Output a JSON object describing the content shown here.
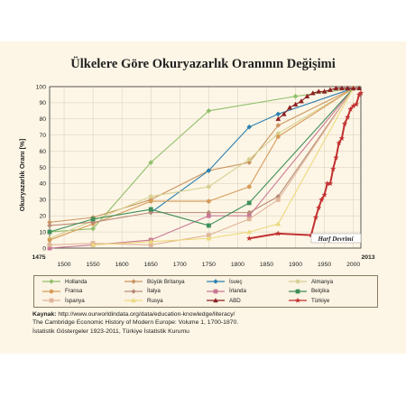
{
  "title": "Ülkelere Göre Okuryazarlık Oranının Değişimi",
  "source": {
    "label": "Kaynak:",
    "lines": [
      "http://www.ourworldindata.org/data/education-knowledge/literacy/",
      "The Cambridge Economic History of Modern Europe: Volume 1, 1700-1870.",
      "İstatistik Göstergeler 1923-2011, Türkiye İstatistik Kurumu"
    ]
  },
  "chart_data": {
    "type": "line",
    "title": "Ülkelere Göre Okuryazarlık Oranının Değişimi",
    "ylabel": "Okuryazarlık Oranı [%]",
    "xlabel": "",
    "xlim": [
      1475,
      2013
    ],
    "ylim": [
      0,
      100
    ],
    "x_ticks": [
      1500,
      1550,
      1600,
      1650,
      1700,
      1750,
      1800,
      1850,
      1900,
      1950,
      2000
    ],
    "x_edge_labels": [
      "1475",
      "2013"
    ],
    "y_ticks": [
      0,
      10,
      20,
      30,
      40,
      50,
      60,
      70,
      80,
      90,
      100
    ],
    "grid": true,
    "legend_position": "bottom",
    "annotation": "Harf Devrimi",
    "series": [
      {
        "name": "Hollanda",
        "color": "#8fbf6a",
        "marker": "diamond",
        "points": [
          [
            1475,
            10
          ],
          [
            1550,
            12
          ],
          [
            1650,
            53
          ],
          [
            1750,
            85
          ],
          [
            1900,
            94
          ],
          [
            2000,
            99
          ]
        ]
      },
      {
        "name": "Büyük Britanya",
        "color": "#c99560",
        "marker": "diamond",
        "points": [
          [
            1475,
            16
          ],
          [
            1550,
            19
          ],
          [
            1650,
            30
          ],
          [
            1750,
            48
          ],
          [
            1820,
            53
          ],
          [
            1870,
            76
          ],
          [
            2000,
            99
          ]
        ]
      },
      {
        "name": "İsveç",
        "color": "#2f80b0",
        "marker": "diamond",
        "points": [
          [
            1650,
            22
          ],
          [
            1750,
            48
          ],
          [
            1820,
            75
          ],
          [
            1870,
            83
          ],
          [
            2000,
            99
          ]
        ]
      },
      {
        "name": "Almanya",
        "color": "#d7d090",
        "marker": "circle",
        "points": [
          [
            1475,
            6
          ],
          [
            1550,
            17
          ],
          [
            1650,
            32
          ],
          [
            1750,
            38
          ],
          [
            1820,
            55
          ],
          [
            1870,
            71
          ],
          [
            2000,
            99
          ]
        ]
      },
      {
        "name": "Fransa",
        "color": "#d69a58",
        "marker": "circle",
        "points": [
          [
            1475,
            5
          ],
          [
            1550,
            15
          ],
          [
            1650,
            29
          ],
          [
            1750,
            29
          ],
          [
            1820,
            38
          ],
          [
            1870,
            69
          ],
          [
            2000,
            99
          ]
        ]
      },
      {
        "name": "İtalya",
        "color": "#b88a78",
        "marker": "diamond",
        "points": [
          [
            1475,
            14
          ],
          [
            1550,
            16
          ],
          [
            1650,
            22
          ],
          [
            1750,
            22
          ],
          [
            1820,
            22
          ],
          [
            1870,
            32
          ],
          [
            2000,
            99
          ]
        ]
      },
      {
        "name": "İrlanda",
        "color": "#c87895",
        "marker": "square",
        "points": [
          [
            1475,
            0
          ],
          [
            1550,
            2
          ],
          [
            1650,
            5
          ],
          [
            1750,
            20
          ],
          [
            1820,
            20
          ],
          [
            2000,
            99
          ]
        ]
      },
      {
        "name": "Belçika",
        "color": "#3f8f5a",
        "marker": "square",
        "points": [
          [
            1475,
            10
          ],
          [
            1550,
            18
          ],
          [
            1650,
            24
          ],
          [
            1750,
            14
          ],
          [
            1820,
            28
          ],
          [
            2000,
            99
          ]
        ]
      },
      {
        "name": "İspanya",
        "color": "#e0b59a",
        "marker": "square",
        "points": [
          [
            1475,
            2
          ],
          [
            1550,
            3
          ],
          [
            1650,
            2
          ],
          [
            1750,
            8
          ],
          [
            1820,
            18
          ],
          [
            1870,
            30
          ],
          [
            2000,
            99
          ]
        ]
      },
      {
        "name": "Rusya",
        "color": "#ecd97c",
        "marker": "triangle",
        "points": [
          [
            1550,
            2
          ],
          [
            1650,
            4
          ],
          [
            1750,
            6
          ],
          [
            1820,
            10
          ],
          [
            1870,
            15
          ],
          [
            2000,
            99
          ]
        ]
      },
      {
        "name": "ABD",
        "color": "#8b2020",
        "marker": "triangle",
        "points": [
          [
            1870,
            80
          ],
          [
            1880,
            83
          ],
          [
            1890,
            87
          ],
          [
            1900,
            89
          ],
          [
            1910,
            91
          ],
          [
            1920,
            94
          ],
          [
            1930,
            96
          ],
          [
            1940,
            97
          ],
          [
            1950,
            97
          ],
          [
            1960,
            98
          ],
          [
            1970,
            99
          ],
          [
            1980,
            99
          ],
          [
            1990,
            99
          ],
          [
            2000,
            99
          ],
          [
            2010,
            99
          ]
        ]
      },
      {
        "name": "Türkiye",
        "color": "#c23030",
        "marker": "star",
        "points": [
          [
            1820,
            6
          ],
          [
            1870,
            9
          ],
          [
            1927,
            8
          ],
          [
            1935,
            19
          ],
          [
            1940,
            25
          ],
          [
            1945,
            30
          ],
          [
            1950,
            33
          ],
          [
            1955,
            40
          ],
          [
            1960,
            40
          ],
          [
            1965,
            49
          ],
          [
            1970,
            56
          ],
          [
            1975,
            65
          ],
          [
            1980,
            68
          ],
          [
            1985,
            77
          ],
          [
            1990,
            81
          ],
          [
            1995,
            86
          ],
          [
            2000,
            88
          ],
          [
            2005,
            89
          ],
          [
            2010,
            95
          ],
          [
            2013,
            96
          ]
        ]
      }
    ]
  }
}
